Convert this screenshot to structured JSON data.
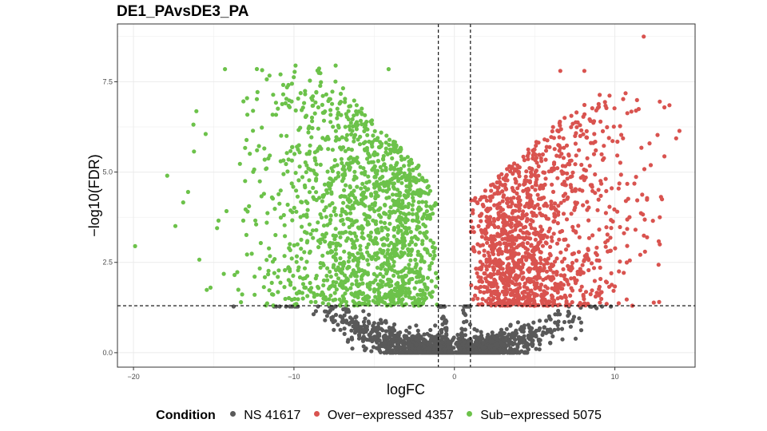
{
  "chart_data": {
    "type": "scatter",
    "title": "DE1_PAvsDE3_PA",
    "xlabel": "logFC",
    "ylabel": "−log10(FDR)",
    "xlim": [
      -21.0,
      15.0
    ],
    "ylim": [
      -0.4,
      9.1
    ],
    "x_ticks": [
      -20,
      -10,
      0,
      10
    ],
    "x_tick_labels": [
      "−20",
      "−10",
      "0",
      "10"
    ],
    "y_ticks": [
      0.0,
      2.5,
      5.0,
      7.5
    ],
    "y_tick_labels": [
      "0.0",
      "2.5",
      "5.0",
      "7.5"
    ],
    "grid": true,
    "threshold_lines": {
      "logFC": [
        -1,
        1
      ],
      "neg_log10_fdr": 1.3
    },
    "legend": {
      "title": "Condition",
      "position": "bottom",
      "entries": [
        {
          "label": "NS 41617",
          "color": "#595959"
        },
        {
          "label": "Over−expressed 4357",
          "color": "#d9534f"
        },
        {
          "label": "Sub−expressed 5075",
          "color": "#6cc24a"
        }
      ]
    },
    "series": [
      {
        "name": "NS 41617",
        "count": 41617,
        "color": "#595959"
      },
      {
        "name": "Over−expressed 4357",
        "count": 4357,
        "color": "#d9534f"
      },
      {
        "name": "Sub−expressed 5075",
        "count": 5075,
        "color": "#6cc24a"
      }
    ],
    "notable_points": [
      {
        "x": -19.9,
        "y": 2.95,
        "series": "Sub−expressed 5075"
      },
      {
        "x": -17.9,
        "y": 4.9,
        "series": "Sub−expressed 5075"
      },
      {
        "x": -16.6,
        "y": 4.45,
        "series": "Sub−expressed 5075"
      },
      {
        "x": -15.2,
        "y": 1.8,
        "series": "Sub−expressed 5075"
      },
      {
        "x": -14.3,
        "y": 7.85,
        "series": "Sub−expressed 5075"
      },
      {
        "x": -9.9,
        "y": 7.95,
        "series": "Sub−expressed 5075"
      },
      {
        "x": -7.4,
        "y": 7.95,
        "series": "Sub−expressed 5075"
      },
      {
        "x": -4.1,
        "y": 7.85,
        "series": "Sub−expressed 5075"
      },
      {
        "x": 11.8,
        "y": 8.75,
        "series": "Over−expressed 4357"
      },
      {
        "x": 13.4,
        "y": 6.85,
        "series": "Over−expressed 4357"
      },
      {
        "x": 12.8,
        "y": 6.95,
        "series": "Over−expressed 4357"
      },
      {
        "x": 8.1,
        "y": 7.8,
        "series": "Over−expressed 4357"
      },
      {
        "x": 6.6,
        "y": 7.8,
        "series": "Over−expressed 4357"
      },
      {
        "x": 12.8,
        "y": 3.0,
        "series": "Over−expressed 4357"
      },
      {
        "x": 12.8,
        "y": 3.75,
        "series": "Over−expressed 4357"
      }
    ]
  }
}
